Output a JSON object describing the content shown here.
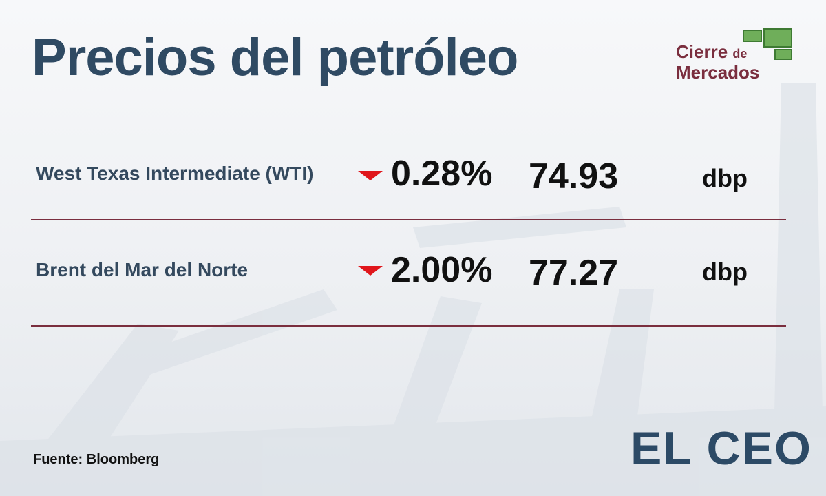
{
  "header": {
    "title": "Precios del petróleo",
    "badge": {
      "line1": "Cierre",
      "small": "de",
      "line2": "Mercados"
    }
  },
  "table": {
    "rows": [
      [
        "West Texas Intermediate (WTI)",
        "0.28%",
        "74.93",
        "dbp"
      ],
      [
        "Brent del Mar del Norte",
        "2.00%",
        "77.27",
        "dbp"
      ]
    ]
  },
  "footer": {
    "source": "Fuente: Bloomberg",
    "brand": "EL CEO"
  }
}
